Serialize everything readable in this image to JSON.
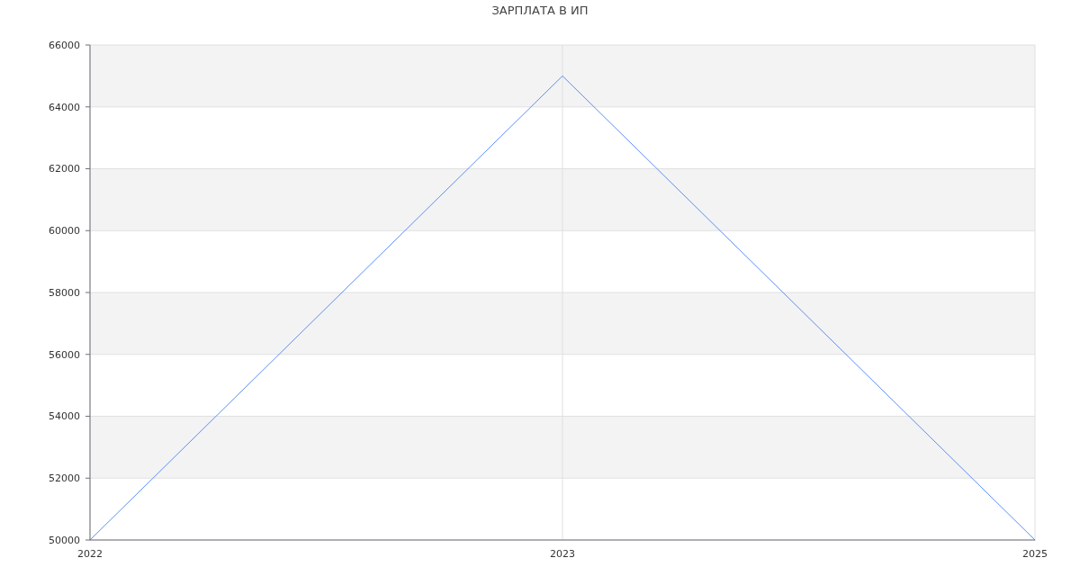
{
  "chart_data": {
    "type": "line",
    "title": "ЗАРПЛАТА В ИП",
    "categories": [
      "2022",
      "2023",
      "2025"
    ],
    "series": [
      {
        "color": "#5b8ff9",
        "values": [
          50000,
          65000,
          50000
        ]
      }
    ],
    "ylim": [
      50000,
      66000
    ],
    "yticks": [
      50000,
      52000,
      54000,
      56000,
      58000,
      60000,
      62000,
      64000,
      66000
    ],
    "grid": true
  }
}
